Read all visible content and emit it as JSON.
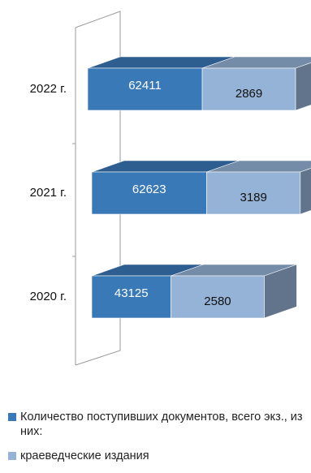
{
  "chart_data": {
    "type": "bar",
    "orientation": "horizontal",
    "stacked": true,
    "three_d": true,
    "categories": [
      "2022 г.",
      "2021 г.",
      "2020 г."
    ],
    "series": [
      {
        "name": "Количество поступивших документов, всего экз., из них:",
        "values": [
          62411,
          62623,
          43125
        ],
        "color": "#3a79b7"
      },
      {
        "name": "краеведческие издания",
        "values": [
          2869,
          3189,
          2580
        ],
        "color": "#95b3d7"
      }
    ],
    "legend_position": "bottom",
    "grid": false
  }
}
